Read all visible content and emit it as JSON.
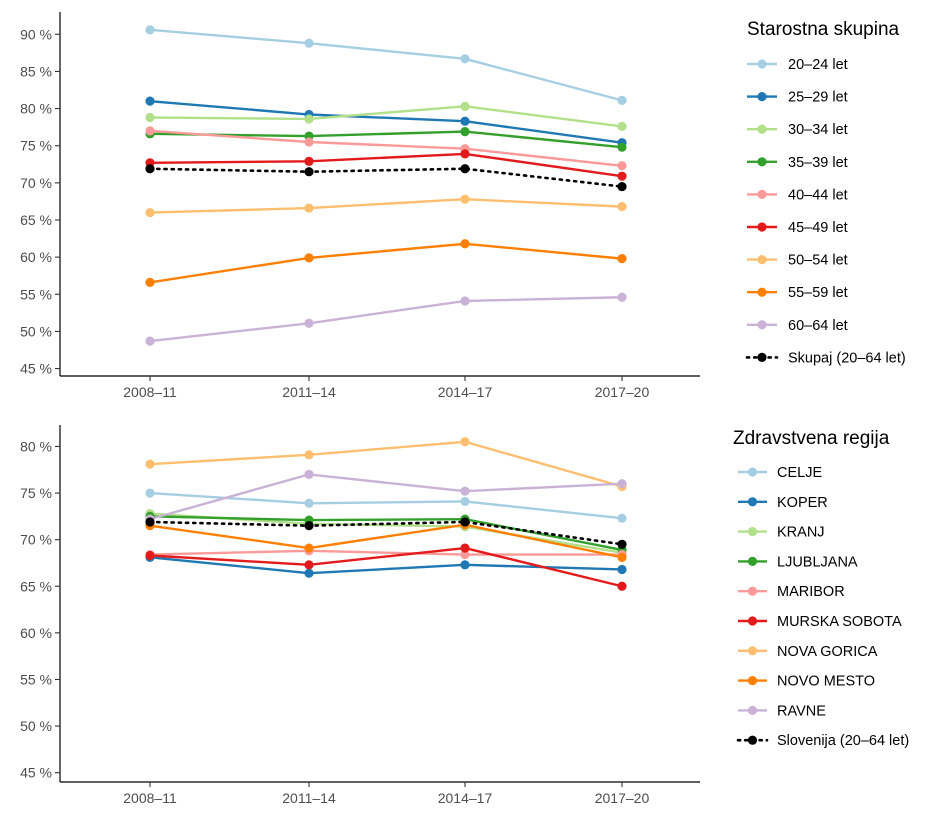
{
  "chart_data": [
    {
      "type": "line",
      "title": "",
      "xlabel": "",
      "ylabel": "",
      "ylim": [
        44,
        93
      ],
      "categories": [
        "2008–11",
        "2011–14",
        "2014–17",
        "2017–20"
      ],
      "y_ticks": [
        "45 %",
        "50 %",
        "55 %",
        "60 %",
        "65 %",
        "70 %",
        "75 %",
        "80 %",
        "85 %",
        "90 %"
      ],
      "y_tick_values": [
        45,
        50,
        55,
        60,
        65,
        70,
        75,
        80,
        85,
        90
      ],
      "grid": false,
      "legend_placement": "right",
      "legend_title": "Starostna skupina",
      "series": [
        {
          "name": "20–24 let",
          "color": "#A6CEE3",
          "values": [
            90.6,
            88.8,
            86.7,
            81.1
          ]
        },
        {
          "name": "25–29 let",
          "color": "#1F78B4",
          "values": [
            81.0,
            79.2,
            78.3,
            75.4
          ]
        },
        {
          "name": "30–34 let",
          "color": "#B2DF8A",
          "values": [
            78.8,
            78.6,
            80.3,
            77.6
          ]
        },
        {
          "name": "35–39 let",
          "color": "#33A02C",
          "values": [
            76.6,
            76.3,
            76.9,
            74.8
          ]
        },
        {
          "name": "40–44 let",
          "color": "#FB9A99",
          "values": [
            77.0,
            75.5,
            74.6,
            72.3
          ]
        },
        {
          "name": "45–49 let",
          "color": "#E31A1C",
          "values": [
            72.7,
            72.9,
            73.9,
            70.9
          ]
        },
        {
          "name": "50–54 let",
          "color": "#FDBF6F",
          "values": [
            66.0,
            66.6,
            67.8,
            66.8
          ]
        },
        {
          "name": "55–59 let",
          "color": "#FF7F00",
          "values": [
            56.6,
            59.9,
            61.8,
            59.8
          ]
        },
        {
          "name": "60–64 let",
          "color": "#CAB2D6",
          "values": [
            48.7,
            51.1,
            54.1,
            54.6
          ]
        },
        {
          "name": "Skupaj (20–64 let)",
          "color": "#000000",
          "dotted": true,
          "values": [
            71.9,
            71.5,
            71.9,
            69.5
          ]
        }
      ]
    },
    {
      "type": "line",
      "title": "",
      "xlabel": "",
      "ylabel": "",
      "ylim": [
        44,
        82.3
      ],
      "categories": [
        "2008–11",
        "2011–14",
        "2014–17",
        "2017–20"
      ],
      "y_ticks": [
        "45 %",
        "50 %",
        "55 %",
        "60 %",
        "65 %",
        "70 %",
        "75 %",
        "80 %"
      ],
      "y_tick_values": [
        45,
        50,
        55,
        60,
        65,
        70,
        75,
        80
      ],
      "grid": false,
      "legend_placement": "right",
      "legend_title": "Zdravstvena regija",
      "series": [
        {
          "name": "CELJE",
          "color": "#A6CEE3",
          "values": [
            75.0,
            73.9,
            74.1,
            72.3
          ]
        },
        {
          "name": "KOPER",
          "color": "#1F78B4",
          "values": [
            68.1,
            66.4,
            67.3,
            66.8
          ]
        },
        {
          "name": "KRANJ",
          "color": "#B2DF8A",
          "values": [
            72.8,
            71.7,
            71.4,
            68.6
          ]
        },
        {
          "name": "LJUBLJANA",
          "color": "#33A02C",
          "values": [
            72.5,
            72.1,
            72.2,
            68.9
          ]
        },
        {
          "name": "MARIBOR",
          "color": "#FB9A99",
          "values": [
            68.4,
            68.8,
            68.4,
            68.4
          ]
        },
        {
          "name": "MURSKA SOBOTA",
          "color": "#E31A1C",
          "values": [
            68.3,
            67.3,
            69.1,
            65.0
          ]
        },
        {
          "name": "NOVA GORICA",
          "color": "#FDBF6F",
          "values": [
            78.1,
            79.1,
            80.5,
            75.7
          ]
        },
        {
          "name": "NOVO MESTO",
          "color": "#FF7F00",
          "values": [
            71.5,
            69.1,
            71.6,
            68.1
          ]
        },
        {
          "name": "RAVNE",
          "color": "#CAB2D6",
          "values": [
            72.2,
            77.0,
            75.2,
            76.0
          ]
        },
        {
          "name": "Slovenija (20–64 let)",
          "color": "#000000",
          "dotted": true,
          "values": [
            71.9,
            71.5,
            71.9,
            69.5
          ]
        }
      ]
    }
  ]
}
